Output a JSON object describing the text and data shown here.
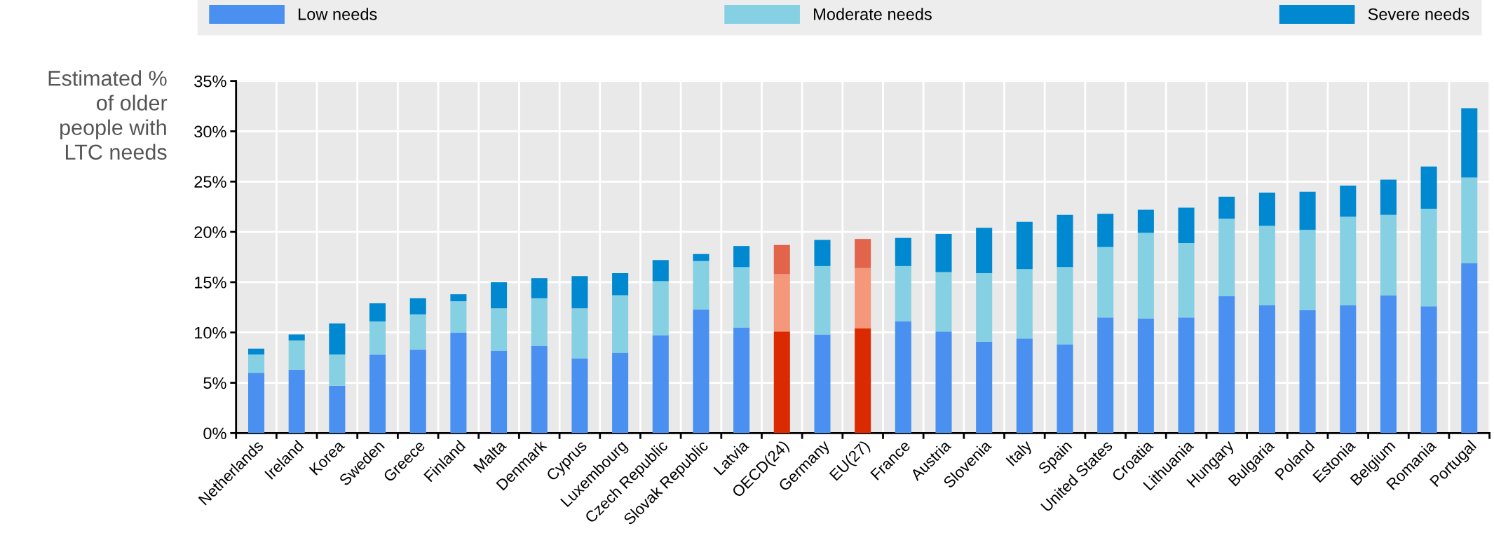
{
  "chart_data": {
    "type": "bar",
    "stacked": true,
    "ylabel": "Estimated %\nof older\npeople with\nLTC needs",
    "categories": [
      "Netherlands",
      "Ireland",
      "Korea",
      "Sweden",
      "Greece",
      "Finland",
      "Malta",
      "Denmark",
      "Cyprus",
      "Luxembourg",
      "Czech Republic",
      "Slovak Republic",
      "Latvia",
      "OECD(24)",
      "Germany",
      "EU(27)",
      "France",
      "Austria",
      "Slovenia",
      "Italy",
      "Spain",
      "United States",
      "Croatia",
      "Lithuania",
      "Hungary",
      "Bulgaria",
      "Poland",
      "Estonia",
      "Belgium",
      "Romania",
      "Portugal"
    ],
    "series": [
      {
        "name": "Low needs",
        "color": "#4a90f0",
        "colors": [
          "#4a90f0",
          "#4a90f0",
          "#4a90f0",
          "#4a90f0",
          "#4a90f0",
          "#4a90f0",
          "#4a90f0",
          "#4a90f0",
          "#4a90f0",
          "#4a90f0",
          "#4a90f0",
          "#4a90f0",
          "#4a90f0",
          "#dc2a00",
          "#4a90f0",
          "#dc2a00",
          "#4a90f0",
          "#4a90f0",
          "#4a90f0",
          "#4a90f0",
          "#4a90f0",
          "#4a90f0",
          "#4a90f0",
          "#4a90f0",
          "#4a90f0",
          "#4a90f0",
          "#4a90f0",
          "#4a90f0",
          "#4a90f0",
          "#4a90f0",
          "#4a90f0"
        ],
        "values": [
          6.0,
          6.3,
          4.7,
          7.8,
          8.3,
          10.0,
          8.2,
          8.7,
          7.4,
          8.0,
          9.7,
          12.3,
          10.5,
          10.1,
          9.8,
          10.4,
          11.1,
          10.1,
          9.1,
          9.4,
          8.8,
          11.5,
          11.4,
          11.5,
          13.6,
          12.7,
          12.2,
          12.7,
          13.7,
          12.6,
          16.9
        ]
      },
      {
        "name": "Moderate needs",
        "color": "#86d0e3",
        "colors": [
          "#86d0e3",
          "#86d0e3",
          "#86d0e3",
          "#86d0e3",
          "#86d0e3",
          "#86d0e3",
          "#86d0e3",
          "#86d0e3",
          "#86d0e3",
          "#86d0e3",
          "#86d0e3",
          "#86d0e3",
          "#86d0e3",
          "#f4977a",
          "#86d0e3",
          "#f4977a",
          "#86d0e3",
          "#86d0e3",
          "#86d0e3",
          "#86d0e3",
          "#86d0e3",
          "#86d0e3",
          "#86d0e3",
          "#86d0e3",
          "#86d0e3",
          "#86d0e3",
          "#86d0e3",
          "#86d0e3",
          "#86d0e3",
          "#86d0e3",
          "#86d0e3"
        ],
        "values": [
          1.8,
          2.9,
          3.1,
          3.3,
          3.5,
          3.1,
          4.2,
          4.7,
          5.0,
          5.7,
          5.4,
          4.8,
          6.0,
          5.7,
          6.8,
          6.0,
          5.5,
          5.9,
          6.8,
          6.9,
          7.7,
          7.0,
          8.5,
          7.4,
          7.7,
          7.9,
          8.0,
          8.8,
          8.0,
          9.7,
          8.5
        ]
      },
      {
        "name": "Severe needs",
        "color": "#0088d1",
        "colors": [
          "#0088d1",
          "#0088d1",
          "#0088d1",
          "#0088d1",
          "#0088d1",
          "#0088d1",
          "#0088d1",
          "#0088d1",
          "#0088d1",
          "#0088d1",
          "#0088d1",
          "#0088d1",
          "#0088d1",
          "#e2654b",
          "#0088d1",
          "#e2654b",
          "#0088d1",
          "#0088d1",
          "#0088d1",
          "#0088d1",
          "#0088d1",
          "#0088d1",
          "#0088d1",
          "#0088d1",
          "#0088d1",
          "#0088d1",
          "#0088d1",
          "#0088d1",
          "#0088d1",
          "#0088d1",
          "#0088d1"
        ],
        "values": [
          0.6,
          0.6,
          3.1,
          1.8,
          1.6,
          0.7,
          2.6,
          2.0,
          3.2,
          2.2,
          2.1,
          0.7,
          2.1,
          2.9,
          2.6,
          2.9,
          2.8,
          3.8,
          4.5,
          4.7,
          5.2,
          3.3,
          2.3,
          3.5,
          2.2,
          3.3,
          3.8,
          3.1,
          3.5,
          4.2,
          6.9
        ]
      }
    ],
    "ylim": [
      0,
      35
    ],
    "yticks": [
      {
        "value": 0,
        "label": "0%"
      },
      {
        "value": 5,
        "label": "5%"
      },
      {
        "value": 10,
        "label": "10%"
      },
      {
        "value": 15,
        "label": "15%"
      },
      {
        "value": 20,
        "label": "20%"
      },
      {
        "value": 25,
        "label": "25%"
      },
      {
        "value": 30,
        "label": "30%"
      },
      {
        "value": 35,
        "label": "35%"
      }
    ],
    "grid": true,
    "legend": "top"
  }
}
